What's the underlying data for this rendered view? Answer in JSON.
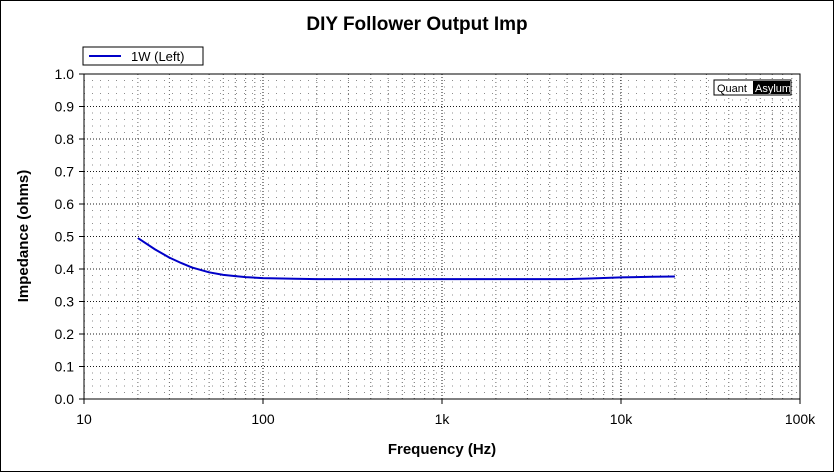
{
  "colors": {
    "series": "#0000c8",
    "grid": "#000000",
    "background": "#ffffff",
    "brand_box": "#000000"
  },
  "brand": {
    "part1": "Quant",
    "part2": "Asylum"
  },
  "chart_data": {
    "type": "line",
    "title": "DIY Follower Output Imp",
    "xlabel": "Frequency (Hz)",
    "ylabel": "Impedance (ohms)",
    "x_scale": "log",
    "xlim": [
      10,
      100000
    ],
    "ylim": [
      0,
      1.0
    ],
    "grid": true,
    "legend_position": "top-left",
    "x_ticks": [
      {
        "value": 10,
        "label": "10"
      },
      {
        "value": 100,
        "label": "100"
      },
      {
        "value": 1000,
        "label": "1k"
      },
      {
        "value": 10000,
        "label": "10k"
      },
      {
        "value": 100000,
        "label": "100k"
      }
    ],
    "y_ticks": [
      {
        "value": 0.0,
        "label": "0.0"
      },
      {
        "value": 0.1,
        "label": "0.1"
      },
      {
        "value": 0.2,
        "label": "0.2"
      },
      {
        "value": 0.3,
        "label": "0.3"
      },
      {
        "value": 0.4,
        "label": "0.4"
      },
      {
        "value": 0.5,
        "label": "0.5"
      },
      {
        "value": 0.6,
        "label": "0.6"
      },
      {
        "value": 0.7,
        "label": "0.7"
      },
      {
        "value": 0.8,
        "label": "0.8"
      },
      {
        "value": 0.9,
        "label": "0.9"
      },
      {
        "value": 1.0,
        "label": "1.0"
      }
    ],
    "series": [
      {
        "name": "1W (Left)",
        "x": [
          20,
          25,
          30,
          35,
          40,
          50,
          60,
          70,
          80,
          100,
          150,
          200,
          300,
          500,
          1000,
          2000,
          3000,
          5000,
          7000,
          10000,
          15000,
          20000
        ],
        "y": [
          0.495,
          0.46,
          0.435,
          0.418,
          0.405,
          0.39,
          0.382,
          0.378,
          0.375,
          0.372,
          0.37,
          0.369,
          0.369,
          0.369,
          0.369,
          0.369,
          0.369,
          0.369,
          0.371,
          0.374,
          0.376,
          0.377
        ]
      }
    ]
  }
}
